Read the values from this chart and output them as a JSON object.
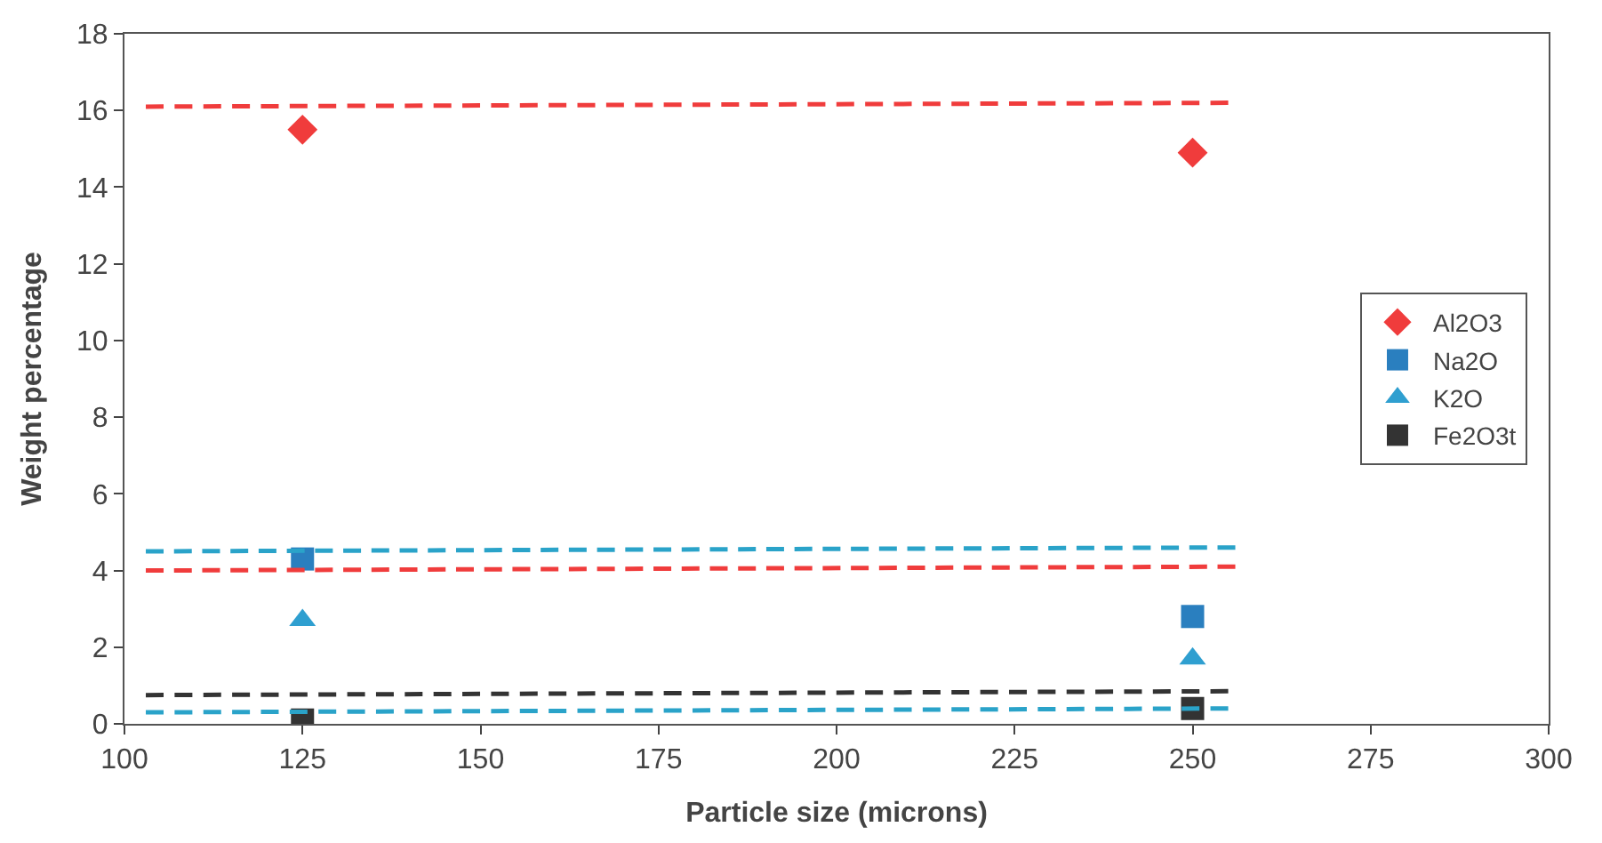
{
  "chart_data": {
    "type": "scatter",
    "xlabel": "Particle size (microns)",
    "ylabel": "Weight percentage",
    "x": [
      125,
      250
    ],
    "xlim": [
      100,
      300
    ],
    "xticks": [
      100,
      125,
      150,
      175,
      200,
      225,
      250,
      275,
      300
    ],
    "ylim": [
      0,
      18
    ],
    "yticks": [
      0,
      2,
      4,
      6,
      8,
      10,
      12,
      14,
      16,
      18
    ],
    "legend": "right",
    "series": [
      {
        "name": "Al2O3",
        "color": "#f03c3c",
        "marker": "diamond",
        "values": [
          15.5,
          14.9
        ]
      },
      {
        "name": "Na2O",
        "color": "#2a7fbf",
        "marker": "square",
        "values": [
          4.3,
          2.8
        ]
      },
      {
        "name": "K2O",
        "color": "#2f9fd0",
        "marker": "triangle",
        "values": [
          2.7,
          1.7
        ]
      },
      {
        "name": "Fe2O3t",
        "color": "#333333",
        "marker": "square",
        "values": [
          0.1,
          0.4
        ]
      },
      {
        "type": "line",
        "color": "#f03c3c",
        "line_style": "dashed",
        "marker": "none",
        "x": [
          103,
          255
        ],
        "values": [
          16.1,
          16.2
        ]
      },
      {
        "type": "line",
        "color": "#2aa3c9",
        "line_style": "dashed",
        "marker": "none",
        "x": [
          103,
          256
        ],
        "values": [
          4.5,
          4.6
        ]
      },
      {
        "type": "line",
        "color": "#f03c3c",
        "line_style": "dashed",
        "marker": "none",
        "x": [
          103,
          256
        ],
        "values": [
          4.0,
          4.1
        ]
      },
      {
        "type": "line",
        "color": "#333333",
        "line_style": "dashed",
        "marker": "none",
        "x": [
          103,
          255
        ],
        "values": [
          0.75,
          0.85
        ]
      },
      {
        "type": "line",
        "color": "#2aa3c9",
        "line_style": "dashed",
        "marker": "none",
        "x": [
          103,
          255
        ],
        "values": [
          0.3,
          0.4
        ]
      }
    ]
  }
}
